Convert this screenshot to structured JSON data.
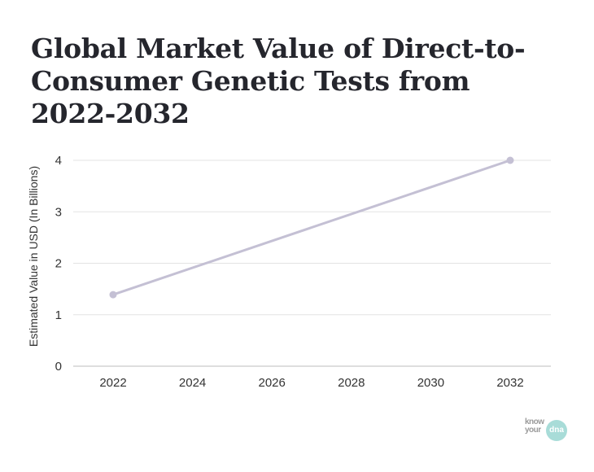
{
  "chart_data": {
    "type": "line",
    "title": "Global Market Value of Direct-to-Consumer Genetic Tests from 2022-2032",
    "xlabel": "",
    "ylabel": "Estimated Value in USD (In Billions)",
    "x_ticks": [
      "2022",
      "2024",
      "2026",
      "2028",
      "2030",
      "2032"
    ],
    "y_ticks": [
      "0",
      "1",
      "2",
      "3",
      "4"
    ],
    "xlim": [
      2021,
      2033
    ],
    "ylim": [
      0,
      4
    ],
    "grid": true,
    "series": [
      {
        "x": [
          2022,
          2032
        ],
        "values": [
          1.39,
          4.0
        ],
        "color": "#c4c0d4"
      }
    ]
  },
  "logo": {
    "line1": "know",
    "line2": "your",
    "circle": "dna",
    "color": "#a8dcd8"
  }
}
